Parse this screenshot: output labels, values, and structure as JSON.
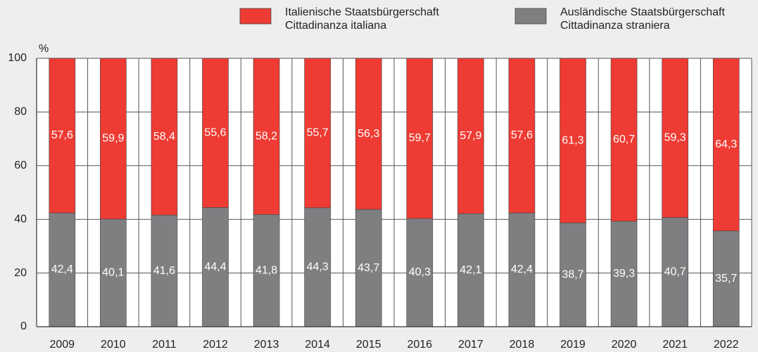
{
  "chart_data": {
    "type": "stacked_bar",
    "y_label": "%",
    "categories": [
      "2009",
      "2010",
      "2011",
      "2012",
      "2013",
      "2014",
      "2015",
      "2016",
      "2017",
      "2018",
      "2019",
      "2020",
      "2021",
      "2022"
    ],
    "series": [
      {
        "name": "Ausländische Staatsbürgerschaft\nCittadinanza straniera",
        "color": "#7f7f82",
        "values": [
          42.4,
          40.1,
          41.6,
          44.4,
          41.8,
          44.3,
          43.7,
          40.3,
          42.1,
          42.4,
          38.7,
          39.3,
          40.7,
          35.7
        ],
        "value_labels": [
          "42,4",
          "40,1",
          "41,6",
          "44,4",
          "41,8",
          "44,3",
          "43,7",
          "40,3",
          "42,1",
          "42,4",
          "38,7",
          "39,3",
          "40,7",
          "35,7"
        ]
      },
      {
        "name": "Italienische Staatsbürgerschaft\nCittadinanza italiana",
        "color": "#ee3b33",
        "values": [
          57.6,
          59.9,
          58.4,
          55.6,
          58.2,
          55.7,
          56.3,
          59.7,
          57.9,
          57.6,
          61.3,
          60.7,
          59.3,
          64.3
        ],
        "value_labels": [
          "57,6",
          "59,9",
          "58,4",
          "55,6",
          "58,2",
          "55,7",
          "56,3",
          "59,7",
          "57,9",
          "57,6",
          "61,3",
          "60,7",
          "59,3",
          "64,3"
        ]
      }
    ],
    "ylim": [
      0,
      100
    ],
    "yticks": [
      0,
      20,
      40,
      60,
      80,
      100
    ],
    "grid": true
  }
}
